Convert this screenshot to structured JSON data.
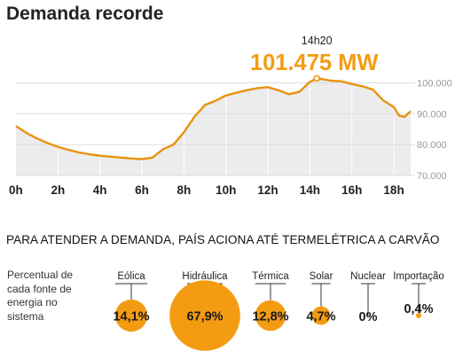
{
  "chart_data": [
    {
      "type": "area",
      "title": "Demanda recorde",
      "peak": {
        "time": "14h20",
        "value_label": "101.475 MW",
        "x": 14.33,
        "y": 101475
      },
      "xlim": [
        0,
        18.8
      ],
      "ylim": [
        70000,
        103000
      ],
      "x_ticks": [
        {
          "x": 0,
          "label": "0h"
        },
        {
          "x": 2,
          "label": "2h"
        },
        {
          "x": 4,
          "label": "4h"
        },
        {
          "x": 6,
          "label": "6h"
        },
        {
          "x": 8,
          "label": "8h"
        },
        {
          "x": 10,
          "label": "10h"
        },
        {
          "x": 12,
          "label": "12h"
        },
        {
          "x": 14,
          "label": "14h"
        },
        {
          "x": 16,
          "label": "16h"
        },
        {
          "x": 18,
          "label": "18h"
        }
      ],
      "y_ticks": [
        {
          "y": 100000,
          "label": "100.000"
        },
        {
          "y": 90000,
          "label": "90.000"
        },
        {
          "y": 80000,
          "label": "80.000"
        },
        {
          "y": 70000,
          "label": "70.000"
        }
      ],
      "series": [
        {
          "x": [
            0,
            0.5,
            1,
            1.5,
            2,
            2.5,
            3,
            3.5,
            4,
            4.5,
            5,
            5.5,
            6,
            6.5,
            7,
            7.5,
            8,
            8.5,
            9,
            9.5,
            10,
            10.5,
            11,
            11.5,
            12,
            12.5,
            13,
            13.5,
            14,
            14.33,
            14.5,
            15,
            15.5,
            16,
            16.5,
            17,
            17.5,
            18,
            18.25,
            18.5,
            18.8
          ],
          "y": [
            86000,
            83800,
            82000,
            80500,
            79300,
            78300,
            77500,
            76900,
            76400,
            76100,
            75800,
            75500,
            75300,
            75800,
            78500,
            80000,
            84000,
            89000,
            92800,
            94200,
            95900,
            96800,
            97600,
            98300,
            98600,
            97600,
            96300,
            97100,
            100300,
            101475,
            101300,
            100700,
            100500,
            99600,
            98900,
            97800,
            94300,
            92100,
            89400,
            89000,
            90800
          ]
        }
      ]
    },
    {
      "type": "bubble",
      "title": "PARA ATENDER A DEMANDA, PAÍS ACIONA ATÉ TERMELÉTRICA A CARVÃO",
      "ylabel": "Percentual de cada fonte de energia no sistema",
      "categories": [
        "Eólica",
        "Hidráulica",
        "Térmica",
        "Solar",
        "Nuclear",
        "Importação"
      ],
      "values": [
        14.1,
        67.9,
        12.8,
        4.7,
        0,
        0.4
      ],
      "value_labels": [
        "14,1%",
        "67,9%",
        "12,8%",
        "4,7%",
        "0%",
        "0,4%"
      ]
    }
  ],
  "colors": {
    "accent": "#f39c12",
    "line": "#e8930e",
    "area": "#ececec",
    "axis_text": "#9a9a9a",
    "tick_text": "#222222"
  }
}
